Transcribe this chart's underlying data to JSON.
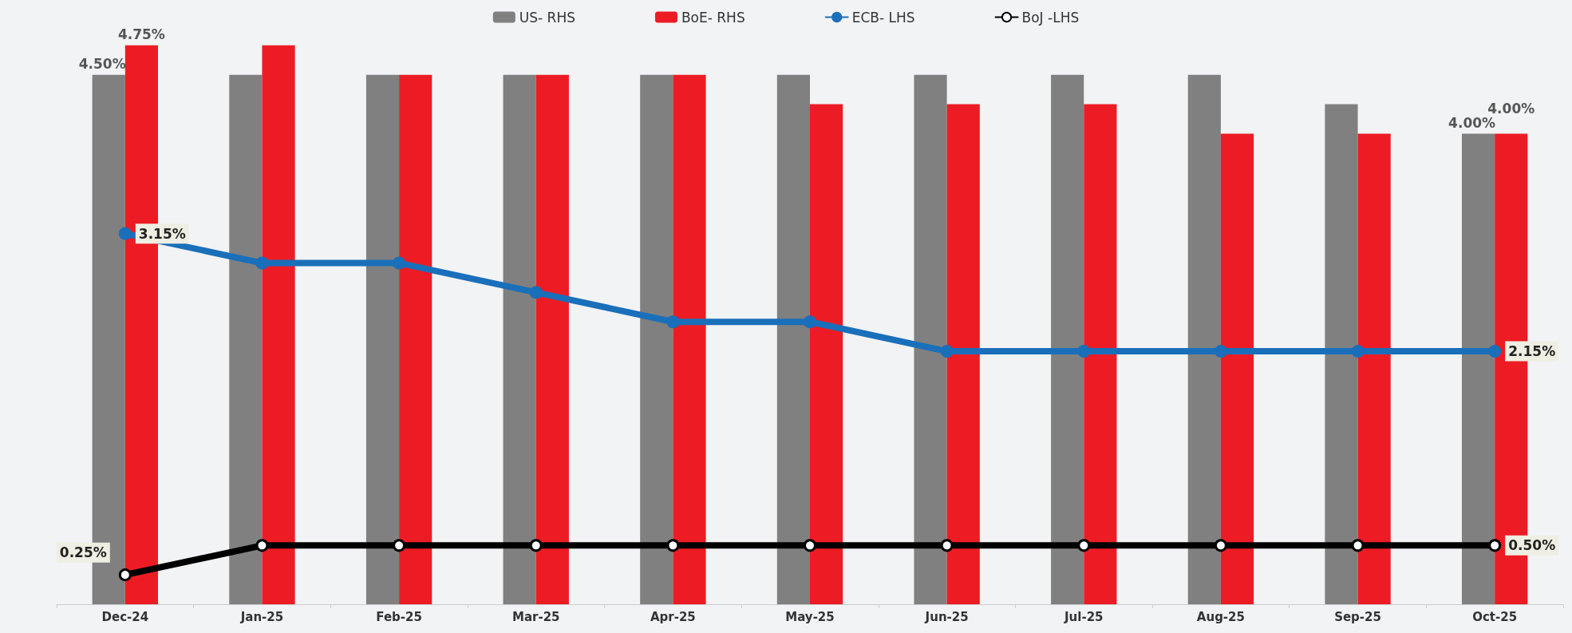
{
  "chart_data": {
    "type": "bar",
    "categories": [
      "Dec-24",
      "Jan-25",
      "Feb-25",
      "Mar-25",
      "Apr-25",
      "May-25",
      "Jun-25",
      "Jul-25",
      "Aug-25",
      "Sep-25",
      "Oct-25"
    ],
    "series": [
      {
        "name": "US- RHS",
        "color": "#808080",
        "values": [
          4.5,
          4.5,
          4.5,
          4.5,
          4.5,
          4.5,
          4.5,
          4.5,
          4.5,
          4.25,
          4.0
        ],
        "value_labels": [
          "4.50%",
          null,
          null,
          null,
          null,
          null,
          null,
          null,
          null,
          null,
          "4.00%"
        ]
      },
      {
        "name": "BoE- RHS",
        "color": "#ed1c24",
        "values": [
          4.75,
          4.75,
          4.5,
          4.5,
          4.5,
          4.25,
          4.25,
          4.25,
          4.0,
          4.0,
          4.0
        ],
        "value_labels": [
          "4.75%",
          null,
          null,
          null,
          null,
          null,
          null,
          null,
          null,
          null,
          "4.00%"
        ]
      },
      {
        "name": "ECB- LHS",
        "type": "line",
        "color": "#1a6fba",
        "marker": "circle",
        "values": [
          3.15,
          2.9,
          2.9,
          2.65,
          2.4,
          2.4,
          2.15,
          2.15,
          2.15,
          2.15,
          2.15
        ],
        "value_labels": [
          "3.15%",
          null,
          null,
          null,
          null,
          null,
          null,
          null,
          null,
          null,
          "2.15%"
        ]
      },
      {
        "name": "BoJ -LHS",
        "type": "line",
        "color": "#000000",
        "marker": "circle",
        "values": [
          0.25,
          0.5,
          0.5,
          0.5,
          0.5,
          0.5,
          0.5,
          0.5,
          0.5,
          0.5,
          0.5
        ],
        "value_labels": [
          "0.25%",
          null,
          null,
          null,
          null,
          null,
          null,
          null,
          null,
          null,
          "0.50%"
        ]
      }
    ],
    "tick_labels": "x",
    "grid": false,
    "legend": "top"
  }
}
